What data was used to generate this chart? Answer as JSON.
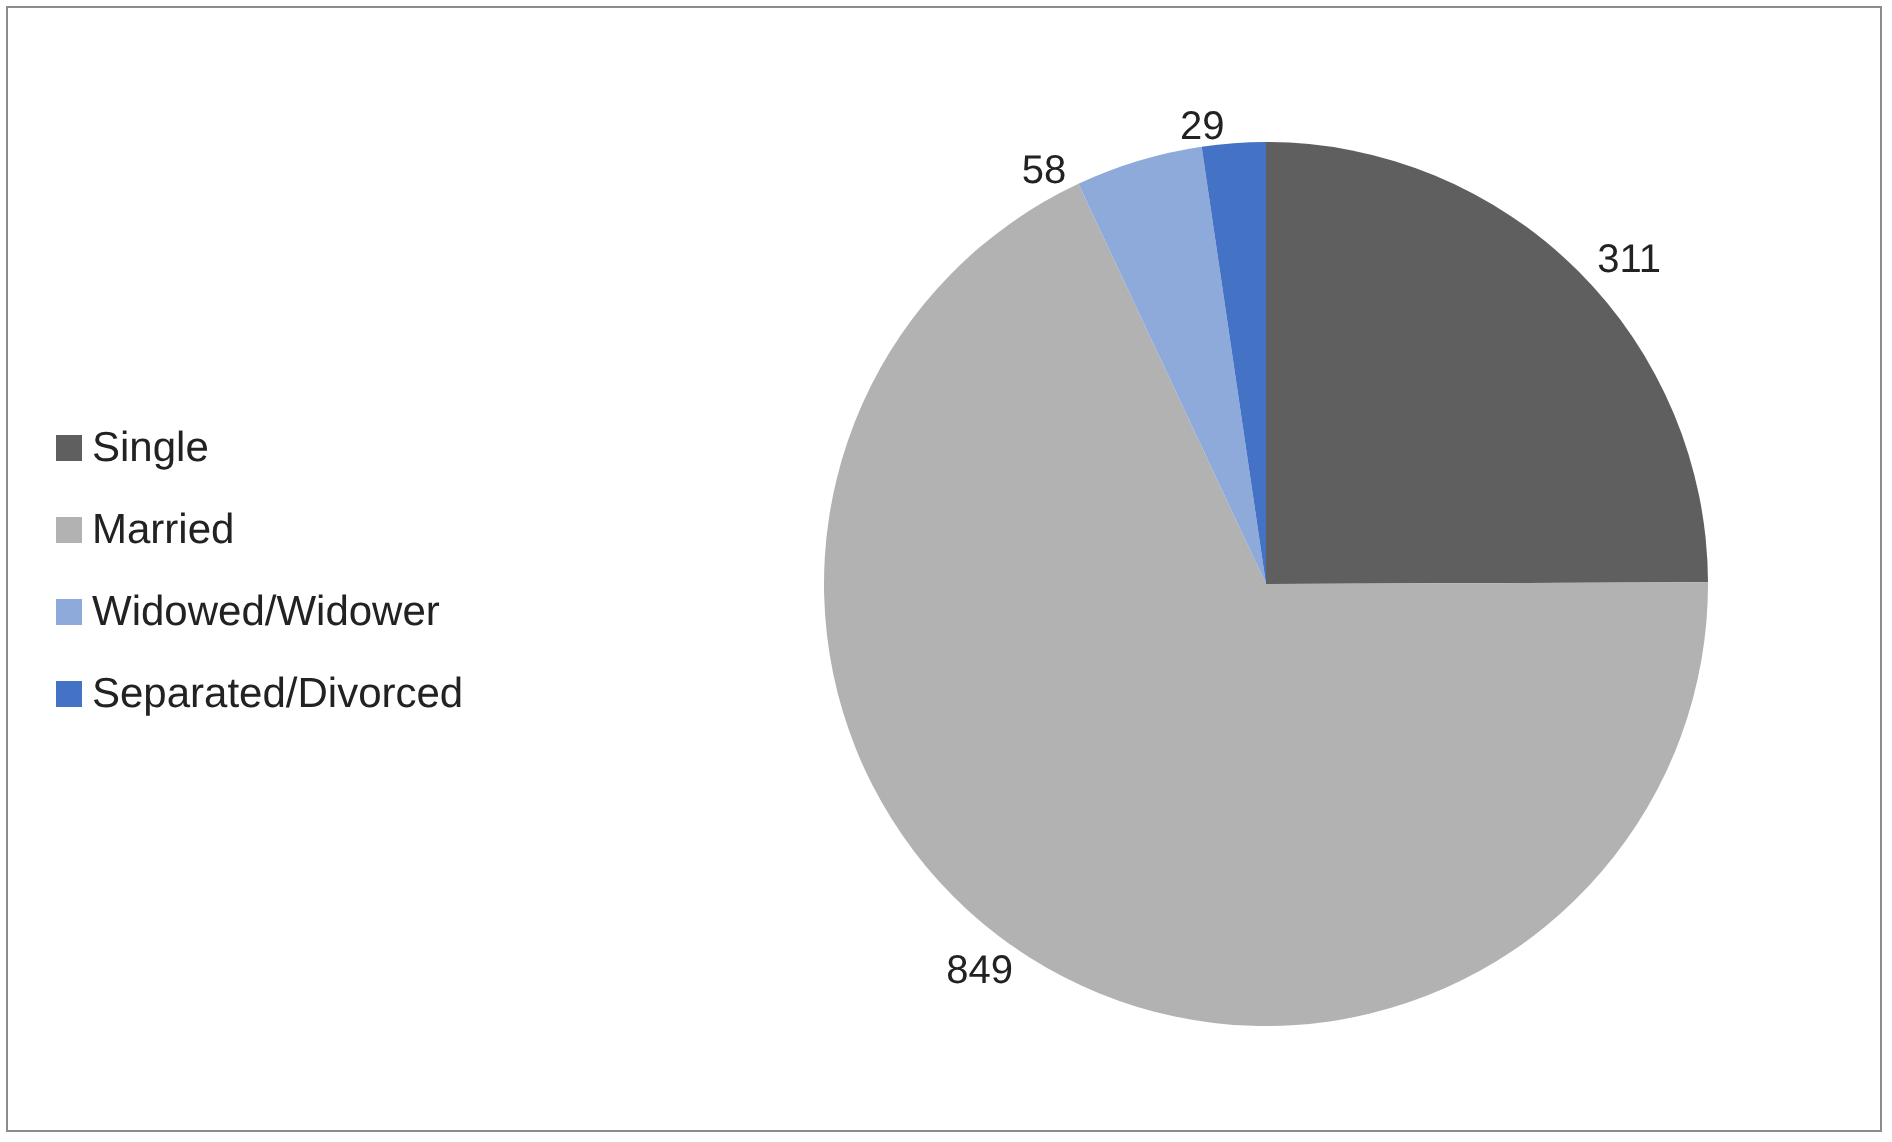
{
  "chart_data": {
    "type": "pie",
    "categories": [
      "Single",
      "Married",
      "Widowed/Widower",
      "Separated/Divorced"
    ],
    "values": [
      311,
      849,
      58,
      29
    ],
    "colors": [
      "#5f5f5f",
      "#b2b2b2",
      "#8eaadb",
      "#4472c4"
    ],
    "data_labels": true,
    "legend": "left"
  }
}
